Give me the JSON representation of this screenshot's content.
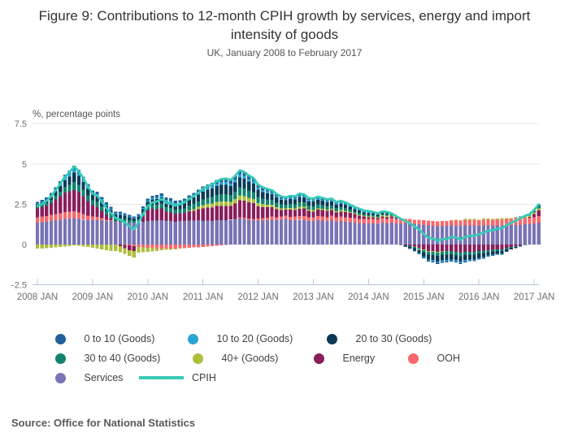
{
  "title": "Figure 9: Contributions to 12-month CPIH growth by services, energy and import intensity of goods",
  "subtitle": "UK, January 2008 to February 2017",
  "source": "Source: Office for National Statistics",
  "y_axis": {
    "unit_label": "%, percentage points",
    "tick_labels": [
      "7.5",
      "5",
      "2.5",
      "0",
      "-2.5"
    ],
    "tick_values": [
      7.5,
      5,
      2.5,
      0,
      -2.5
    ]
  },
  "x_axis": {
    "tick_labels": [
      "2008 JAN",
      "2009 JAN",
      "2010 JAN",
      "2011 JAN",
      "2012 JAN",
      "2013 JAN",
      "2014 JAN",
      "2015 JAN",
      "2016 JAN",
      "2017 JAN"
    ]
  },
  "legend": [
    {
      "label": "0 to 10 (Goods)",
      "color": "#20609A",
      "swatch": "dot"
    },
    {
      "label": "10 to 20 (Goods)",
      "color": "#2BA3D6",
      "swatch": "dot"
    },
    {
      "label": "20 to 30 (Goods)",
      "color": "#0C3A56",
      "swatch": "dot"
    },
    {
      "label": "30 to 40 (Goods)",
      "color": "#12836F",
      "swatch": "dot"
    },
    {
      "label": "40+ (Goods)",
      "color": "#ACBE3C",
      "swatch": "dot"
    },
    {
      "label": "Energy",
      "color": "#8A1E5B",
      "swatch": "dot"
    },
    {
      "label": "OOH",
      "color": "#F8686C",
      "swatch": "dot"
    },
    {
      "label": "Services",
      "color": "#7974B6",
      "swatch": "dot"
    },
    {
      "label": "CPIH",
      "color": "#37CBB6",
      "swatch": "line"
    }
  ],
  "chart_data": {
    "type": "bar",
    "subtype": "stacked-monthly-bars-with-line-overlay",
    "title": "Figure 9: Contributions to 12-month CPIH growth by services, energy and import intensity of goods",
    "subtitle": "UK, January 2008 to February 2017",
    "ylabel": "%, percentage points",
    "ylim": [
      -2.5,
      7.5
    ],
    "grid": true,
    "legend_position": "bottom-left",
    "x_range": {
      "start": "2008-01",
      "end": "2017-02",
      "months": 110
    },
    "x_tick_labels": [
      "2008 JAN",
      "2009 JAN",
      "2010 JAN",
      "2011 JAN",
      "2012 JAN",
      "2013 JAN",
      "2014 JAN",
      "2015 JAN",
      "2016 JAN",
      "2017 JAN"
    ],
    "stack_order_bottom_to_top": [
      "Services",
      "OOH",
      "Energy",
      "40+ (Goods)",
      "30 to 40 (Goods)",
      "20 to 30 (Goods)",
      "10 to 20 (Goods)",
      "0 to 10 (Goods)"
    ],
    "line": {
      "name": "CPIH",
      "color": "#37CBB6",
      "definition": "CPIH 12-month growth = sum of all stacked contributions"
    },
    "series": [
      {
        "name": "0 to 10 (Goods)",
        "color": "#20609A",
        "values": [
          0.1,
          0.1,
          0.12,
          0.14,
          0.16,
          0.18,
          0.2,
          0.22,
          0.25,
          0.22,
          0.2,
          0.18,
          0.15,
          0.16,
          0.14,
          0.13,
          0.12,
          0.11,
          0.11,
          0.1,
          0.09,
          0.08,
          0.09,
          0.1,
          0.12,
          0.13,
          0.14,
          0.15,
          0.14,
          0.14,
          0.13,
          0.13,
          0.14,
          0.15,
          0.16,
          0.18,
          0.19,
          0.2,
          0.21,
          0.22,
          0.23,
          0.23,
          0.22,
          0.23,
          0.25,
          0.24,
          0.22,
          0.21,
          0.18,
          0.17,
          0.16,
          0.15,
          0.13,
          0.12,
          0.11,
          0.12,
          0.12,
          0.13,
          0.12,
          0.12,
          0.12,
          0.11,
          0.11,
          0.1,
          0.1,
          0.1,
          0.1,
          0.09,
          0.08,
          0.08,
          0.07,
          0.07,
          0.06,
          0.06,
          0.05,
          0.05,
          0.05,
          0.04,
          0.03,
          0.02,
          0.0,
          -0.01,
          -0.02,
          -0.03,
          -0.05,
          -0.06,
          -0.07,
          -0.08,
          -0.08,
          -0.08,
          -0.07,
          -0.07,
          -0.08,
          -0.07,
          -0.06,
          -0.06,
          -0.05,
          -0.05,
          -0.04,
          -0.03,
          -0.03,
          -0.02,
          -0.01,
          0.0,
          0.01,
          0.02,
          0.03,
          0.04,
          0.05,
          0.06
        ]
      },
      {
        "name": "10 to 20 (Goods)",
        "color": "#2BA3D6",
        "values": [
          0.05,
          0.05,
          0.06,
          0.08,
          0.1,
          0.12,
          0.14,
          0.15,
          0.18,
          0.16,
          0.14,
          0.12,
          0.1,
          0.1,
          0.09,
          0.08,
          0.08,
          0.07,
          0.07,
          0.06,
          0.05,
          0.05,
          0.06,
          0.07,
          0.08,
          0.09,
          0.1,
          0.1,
          0.1,
          0.1,
          0.09,
          0.09,
          0.1,
          0.1,
          0.11,
          0.12,
          0.13,
          0.14,
          0.15,
          0.16,
          0.17,
          0.17,
          0.16,
          0.17,
          0.18,
          0.17,
          0.16,
          0.15,
          0.13,
          0.12,
          0.11,
          0.1,
          0.09,
          0.08,
          0.08,
          0.08,
          0.08,
          0.09,
          0.08,
          0.08,
          0.08,
          0.08,
          0.07,
          0.07,
          0.07,
          0.06,
          0.06,
          0.06,
          0.05,
          0.05,
          0.04,
          0.04,
          0.04,
          0.03,
          0.03,
          0.03,
          0.03,
          0.02,
          0.01,
          0.0,
          -0.01,
          -0.02,
          -0.03,
          -0.04,
          -0.05,
          -0.06,
          -0.06,
          -0.07,
          -0.07,
          -0.07,
          -0.06,
          -0.06,
          -0.07,
          -0.06,
          -0.05,
          -0.05,
          -0.04,
          -0.04,
          -0.03,
          -0.03,
          -0.02,
          -0.02,
          -0.01,
          0.0,
          0.0,
          0.01,
          0.02,
          0.02,
          0.03,
          0.04
        ]
      },
      {
        "name": "20 to 30 (Goods)",
        "color": "#0C3A56",
        "values": [
          0.15,
          0.16,
          0.18,
          0.22,
          0.28,
          0.35,
          0.42,
          0.5,
          0.6,
          0.55,
          0.48,
          0.4,
          0.35,
          0.38,
          0.35,
          0.3,
          0.28,
          0.25,
          0.25,
          0.22,
          0.2,
          0.15,
          0.18,
          0.25,
          0.28,
          0.32,
          0.35,
          0.38,
          0.35,
          0.35,
          0.32,
          0.32,
          0.35,
          0.38,
          0.4,
          0.42,
          0.48,
          0.5,
          0.52,
          0.55,
          0.58,
          0.58,
          0.55,
          0.58,
          0.62,
          0.6,
          0.55,
          0.52,
          0.45,
          0.4,
          0.38,
          0.35,
          0.32,
          0.28,
          0.28,
          0.3,
          0.3,
          0.32,
          0.28,
          0.25,
          0.28,
          0.28,
          0.26,
          0.25,
          0.25,
          0.22,
          0.22,
          0.2,
          0.18,
          0.15,
          0.14,
          0.12,
          0.12,
          0.1,
          0.08,
          0.08,
          0.08,
          0.05,
          0.02,
          -0.02,
          -0.05,
          -0.1,
          -0.15,
          -0.2,
          -0.25,
          -0.3,
          -0.32,
          -0.35,
          -0.35,
          -0.35,
          -0.32,
          -0.32,
          -0.35,
          -0.32,
          -0.3,
          -0.3,
          -0.28,
          -0.25,
          -0.22,
          -0.2,
          -0.18,
          -0.18,
          -0.12,
          -0.1,
          -0.08,
          -0.05,
          -0.02,
          0.0,
          0.02,
          0.05
        ]
      },
      {
        "name": "30 to 40 (Goods)",
        "color": "#12836F",
        "values": [
          0.1,
          0.12,
          0.15,
          0.18,
          0.22,
          0.28,
          0.35,
          0.42,
          0.5,
          0.45,
          0.4,
          0.35,
          0.3,
          0.32,
          0.28,
          0.25,
          0.22,
          0.2,
          0.2,
          0.18,
          0.15,
          0.12,
          0.15,
          0.18,
          0.22,
          0.25,
          0.28,
          0.3,
          0.28,
          0.28,
          0.25,
          0.25,
          0.28,
          0.3,
          0.32,
          0.32,
          0.35,
          0.38,
          0.4,
          0.42,
          0.45,
          0.45,
          0.42,
          0.45,
          0.5,
          0.48,
          0.45,
          0.42,
          0.38,
          0.35,
          0.32,
          0.3,
          0.28,
          0.25,
          0.22,
          0.25,
          0.25,
          0.28,
          0.28,
          0.25,
          0.25,
          0.25,
          0.22,
          0.22,
          0.22,
          0.2,
          0.2,
          0.18,
          0.15,
          0.12,
          0.12,
          0.1,
          0.1,
          0.08,
          0.08,
          0.08,
          0.08,
          0.05,
          0.02,
          0.0,
          -0.02,
          -0.05,
          -0.08,
          -0.12,
          -0.15,
          -0.18,
          -0.2,
          -0.2,
          -0.22,
          -0.22,
          -0.2,
          -0.2,
          -0.22,
          -0.2,
          -0.18,
          -0.18,
          -0.15,
          -0.15,
          -0.12,
          -0.12,
          -0.1,
          -0.1,
          -0.08,
          -0.05,
          -0.05,
          -0.02,
          0.0,
          0.02,
          0.05,
          0.1
        ]
      },
      {
        "name": "40+ (Goods)",
        "color": "#ACBE3C",
        "values": [
          -0.25,
          -0.25,
          -0.22,
          -0.2,
          -0.18,
          -0.15,
          -0.12,
          -0.1,
          -0.05,
          -0.08,
          -0.12,
          -0.15,
          -0.2,
          -0.25,
          -0.3,
          -0.35,
          -0.4,
          -0.4,
          -0.38,
          -0.35,
          -0.35,
          -0.4,
          -0.35,
          -0.3,
          -0.25,
          -0.2,
          -0.15,
          -0.1,
          -0.08,
          -0.08,
          -0.05,
          -0.02,
          0.0,
          0.05,
          0.1,
          0.15,
          0.2,
          0.22,
          0.25,
          0.25,
          0.28,
          0.28,
          0.25,
          0.28,
          0.3,
          0.3,
          0.28,
          0.25,
          0.2,
          0.18,
          0.16,
          0.14,
          0.12,
          0.1,
          0.08,
          0.1,
          0.1,
          0.12,
          0.1,
          0.08,
          0.08,
          0.08,
          0.08,
          0.08,
          0.08,
          0.08,
          0.08,
          0.06,
          0.05,
          0.05,
          0.05,
          0.05,
          0.05,
          0.05,
          0.05,
          0.08,
          0.08,
          0.05,
          0.05,
          0.02,
          0.0,
          0.0,
          -0.02,
          -0.02,
          -0.05,
          -0.05,
          -0.05,
          -0.05,
          -0.02,
          0.0,
          0.02,
          0.05,
          0.02,
          0.05,
          0.08,
          0.05,
          0.05,
          0.08,
          0.05,
          0.05,
          0.05,
          0.08,
          0.05,
          0.05,
          0.05,
          0.08,
          0.08,
          0.08,
          0.1,
          0.12
        ]
      },
      {
        "name": "Energy",
        "color": "#8A1E5B",
        "values": [
          0.55,
          0.6,
          0.65,
          0.75,
          0.9,
          1.05,
          1.2,
          1.25,
          1.3,
          1.25,
          1.1,
          0.9,
          0.7,
          0.6,
          0.45,
          0.3,
          0.15,
          0.0,
          -0.1,
          -0.2,
          -0.3,
          -0.3,
          0.0,
          0.35,
          0.7,
          0.75,
          0.72,
          0.75,
          0.6,
          0.55,
          0.5,
          0.5,
          0.52,
          0.58,
          0.62,
          0.7,
          0.8,
          0.82,
          0.85,
          0.88,
          0.9,
          0.88,
          0.85,
          0.95,
          1.05,
          1.05,
          1.0,
          0.98,
          0.75,
          0.7,
          0.65,
          0.6,
          0.5,
          0.4,
          0.38,
          0.45,
          0.4,
          0.45,
          0.48,
          0.4,
          0.35,
          0.4,
          0.42,
          0.38,
          0.35,
          0.3,
          0.32,
          0.32,
          0.3,
          0.25,
          0.2,
          0.15,
          0.12,
          0.1,
          0.08,
          0.1,
          0.1,
          0.1,
          0.05,
          0.0,
          -0.05,
          -0.08,
          -0.12,
          -0.2,
          -0.3,
          -0.4,
          -0.4,
          -0.45,
          -0.4,
          -0.4,
          -0.4,
          -0.45,
          -0.5,
          -0.45,
          -0.45,
          -0.45,
          -0.4,
          -0.38,
          -0.35,
          -0.32,
          -0.3,
          -0.3,
          -0.22,
          -0.15,
          -0.1,
          -0.05,
          0.0,
          0.05,
          0.2,
          0.35
        ]
      },
      {
        "name": "OOH",
        "color": "#F8686C",
        "values": [
          0.35,
          0.35,
          0.36,
          0.38,
          0.4,
          0.4,
          0.42,
          0.42,
          0.42,
          0.4,
          0.35,
          0.3,
          0.25,
          0.2,
          0.15,
          0.1,
          0.05,
          0.02,
          0.0,
          -0.02,
          -0.05,
          -0.1,
          -0.15,
          -0.18,
          -0.2,
          -0.22,
          -0.25,
          -0.25,
          -0.25,
          -0.25,
          -0.25,
          -0.22,
          -0.22,
          -0.2,
          -0.18,
          -0.18,
          -0.15,
          -0.12,
          -0.1,
          -0.08,
          -0.05,
          -0.02,
          0.0,
          0.02,
          0.05,
          0.08,
          0.1,
          0.1,
          0.12,
          0.15,
          0.15,
          0.18,
          0.18,
          0.2,
          0.2,
          0.2,
          0.22,
          0.22,
          0.25,
          0.25,
          0.25,
          0.25,
          0.25,
          0.25,
          0.28,
          0.28,
          0.28,
          0.28,
          0.28,
          0.28,
          0.28,
          0.28,
          0.28,
          0.28,
          0.28,
          0.28,
          0.28,
          0.28,
          0.28,
          0.3,
          0.3,
          0.3,
          0.3,
          0.3,
          0.3,
          0.3,
          0.32,
          0.32,
          0.32,
          0.32,
          0.32,
          0.35,
          0.35,
          0.35,
          0.35,
          0.35,
          0.35,
          0.35,
          0.38,
          0.38,
          0.38,
          0.4,
          0.4,
          0.4,
          0.42,
          0.42,
          0.42,
          0.42,
          0.42,
          0.42
        ]
      },
      {
        "name": "Services",
        "color": "#7974B6",
        "values": [
          1.35,
          1.38,
          1.4,
          1.45,
          1.5,
          1.55,
          1.6,
          1.62,
          1.65,
          1.6,
          1.55,
          1.5,
          1.5,
          1.52,
          1.5,
          1.45,
          1.45,
          1.4,
          1.4,
          1.38,
          1.35,
          1.35,
          1.4,
          1.42,
          1.45,
          1.48,
          1.48,
          1.5,
          1.45,
          1.45,
          1.42,
          1.45,
          1.45,
          1.48,
          1.48,
          1.5,
          1.45,
          1.48,
          1.45,
          1.52,
          1.5,
          1.52,
          1.55,
          1.58,
          1.65,
          1.58,
          1.52,
          1.5,
          1.5,
          1.48,
          1.52,
          1.55,
          1.52,
          1.55,
          1.58,
          1.52,
          1.52,
          1.55,
          1.52,
          1.45,
          1.45,
          1.52,
          1.48,
          1.45,
          1.5,
          1.4,
          1.45,
          1.42,
          1.38,
          1.35,
          1.32,
          1.3,
          1.3,
          1.32,
          1.28,
          1.35,
          1.32,
          1.35,
          1.3,
          1.28,
          1.3,
          1.28,
          1.25,
          1.25,
          1.2,
          1.18,
          1.15,
          1.12,
          1.15,
          1.15,
          1.18,
          1.15,
          1.15,
          1.18,
          1.15,
          1.18,
          1.15,
          1.18,
          1.18,
          1.15,
          1.18,
          1.15,
          1.2,
          1.2,
          1.22,
          1.22,
          1.25,
          1.25,
          1.28,
          1.35
        ]
      }
    ]
  }
}
